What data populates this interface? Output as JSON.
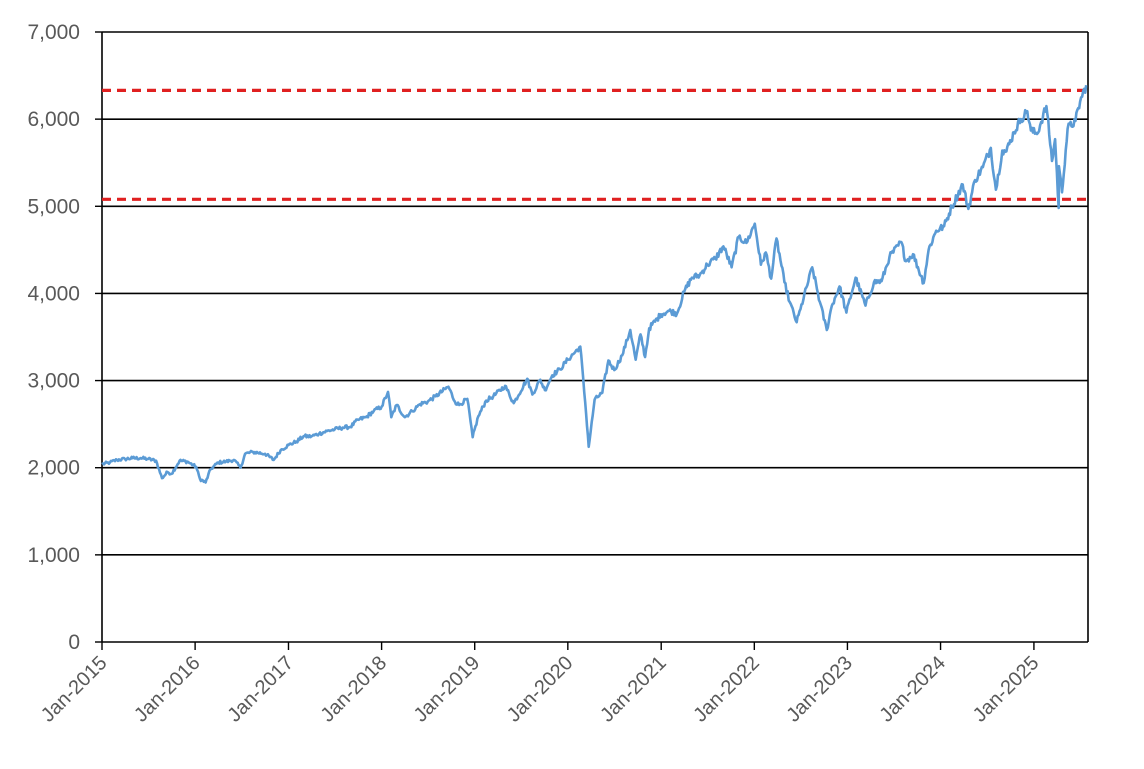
{
  "chart_data": {
    "type": "line",
    "title": "",
    "xlabel": "",
    "ylabel": "",
    "ylim": [
      0,
      7000
    ],
    "xlim": [
      "2015-01-01",
      "2025-08-01"
    ],
    "y_ticks": [
      0,
      1000,
      2000,
      3000,
      4000,
      5000,
      6000,
      7000
    ],
    "y_tick_labels": [
      "0",
      "1,000",
      "2,000",
      "3,000",
      "4,000",
      "5,000",
      "6,000",
      "7,000"
    ],
    "x_ticks": [
      "2015-01-01",
      "2016-01-01",
      "2017-01-01",
      "2018-01-01",
      "2019-01-01",
      "2020-01-01",
      "2021-01-01",
      "2022-01-01",
      "2023-01-01",
      "2024-01-01",
      "2025-01-01"
    ],
    "x_tick_labels": [
      "Jan-2015",
      "Jan-2016",
      "Jan-2017",
      "Jan-2018",
      "Jan-2019",
      "Jan-2020",
      "Jan-2021",
      "Jan-2022",
      "Jan-2023",
      "Jan-2024",
      "Jan-2025"
    ],
    "gridlines": "horizontal",
    "legend": "none",
    "reference_lines": [
      {
        "y": 6330,
        "style": "dashed",
        "color": "#e02020"
      },
      {
        "y": 5080,
        "style": "dashed",
        "color": "#e02020"
      }
    ],
    "series": [
      {
        "color": "#5b9bd5",
        "points": [
          [
            "2015-01-01",
            2040
          ],
          [
            "2015-02-01",
            2060
          ],
          [
            "2015-03-01",
            2090
          ],
          [
            "2015-04-01",
            2100
          ],
          [
            "2015-05-01",
            2110
          ],
          [
            "2015-06-01",
            2110
          ],
          [
            "2015-07-01",
            2100
          ],
          [
            "2015-08-01",
            2080
          ],
          [
            "2015-08-24",
            1880
          ],
          [
            "2015-09-15",
            1950
          ],
          [
            "2015-10-01",
            1930
          ],
          [
            "2015-11-01",
            2080
          ],
          [
            "2015-12-01",
            2070
          ],
          [
            "2016-01-05",
            2010
          ],
          [
            "2016-01-20",
            1870
          ],
          [
            "2016-02-11",
            1830
          ],
          [
            "2016-03-01",
            1980
          ],
          [
            "2016-04-01",
            2060
          ],
          [
            "2016-05-01",
            2070
          ],
          [
            "2016-06-01",
            2090
          ],
          [
            "2016-06-27",
            2000
          ],
          [
            "2016-07-15",
            2160
          ],
          [
            "2016-08-15",
            2180
          ],
          [
            "2016-10-01",
            2160
          ],
          [
            "2016-11-04",
            2090
          ],
          [
            "2016-12-01",
            2200
          ],
          [
            "2017-01-01",
            2260
          ],
          [
            "2017-02-01",
            2300
          ],
          [
            "2017-03-01",
            2360
          ],
          [
            "2017-04-01",
            2360
          ],
          [
            "2017-05-01",
            2390
          ],
          [
            "2017-06-01",
            2420
          ],
          [
            "2017-07-01",
            2440
          ],
          [
            "2017-08-01",
            2460
          ],
          [
            "2017-09-01",
            2470
          ],
          [
            "2017-10-01",
            2550
          ],
          [
            "2017-11-01",
            2580
          ],
          [
            "2017-12-01",
            2650
          ],
          [
            "2018-01-01",
            2700
          ],
          [
            "2018-01-26",
            2870
          ],
          [
            "2018-02-08",
            2580
          ],
          [
            "2018-03-01",
            2720
          ],
          [
            "2018-04-02",
            2580
          ],
          [
            "2018-05-01",
            2650
          ],
          [
            "2018-06-01",
            2730
          ],
          [
            "2018-07-01",
            2760
          ],
          [
            "2018-08-01",
            2820
          ],
          [
            "2018-09-20",
            2930
          ],
          [
            "2018-10-15",
            2760
          ],
          [
            "2018-11-01",
            2720
          ],
          [
            "2018-12-03",
            2790
          ],
          [
            "2018-12-24",
            2350
          ],
          [
            "2019-01-15",
            2590
          ],
          [
            "2019-02-15",
            2770
          ],
          [
            "2019-03-15",
            2820
          ],
          [
            "2019-04-30",
            2940
          ],
          [
            "2019-06-03",
            2740
          ],
          [
            "2019-07-26",
            3020
          ],
          [
            "2019-08-15",
            2840
          ],
          [
            "2019-09-15",
            3010
          ],
          [
            "2019-10-03",
            2890
          ],
          [
            "2019-11-01",
            3060
          ],
          [
            "2019-12-01",
            3130
          ],
          [
            "2020-01-01",
            3240
          ],
          [
            "2020-02-19",
            3390
          ],
          [
            "2020-03-09",
            2750
          ],
          [
            "2020-03-23",
            2240
          ],
          [
            "2020-04-15",
            2780
          ],
          [
            "2020-05-15",
            2860
          ],
          [
            "2020-06-08",
            3230
          ],
          [
            "2020-07-01",
            3120
          ],
          [
            "2020-08-01",
            3290
          ],
          [
            "2020-09-02",
            3580
          ],
          [
            "2020-09-23",
            3240
          ],
          [
            "2020-10-12",
            3530
          ],
          [
            "2020-10-30",
            3270
          ],
          [
            "2020-11-15",
            3600
          ],
          [
            "2020-12-31",
            3760
          ],
          [
            "2021-02-01",
            3800
          ],
          [
            "2021-03-04",
            3770
          ],
          [
            "2021-04-01",
            4020
          ],
          [
            "2021-05-01",
            4180
          ],
          [
            "2021-06-01",
            4210
          ],
          [
            "2021-07-01",
            4330
          ],
          [
            "2021-08-01",
            4400
          ],
          [
            "2021-09-02",
            4540
          ],
          [
            "2021-10-04",
            4300
          ],
          [
            "2021-11-01",
            4650
          ],
          [
            "2021-12-01",
            4580
          ],
          [
            "2022-01-03",
            4800
          ],
          [
            "2022-01-27",
            4330
          ],
          [
            "2022-02-15",
            4470
          ],
          [
            "2022-03-08",
            4170
          ],
          [
            "2022-03-29",
            4630
          ],
          [
            "2022-04-29",
            4130
          ],
          [
            "2022-05-20",
            3900
          ],
          [
            "2022-06-16",
            3670
          ],
          [
            "2022-07-01",
            3820
          ],
          [
            "2022-08-16",
            4300
          ],
          [
            "2022-09-15",
            3900
          ],
          [
            "2022-10-12",
            3580
          ],
          [
            "2022-11-01",
            3860
          ],
          [
            "2022-12-01",
            4080
          ],
          [
            "2022-12-28",
            3780
          ],
          [
            "2023-02-02",
            4180
          ],
          [
            "2023-03-13",
            3860
          ],
          [
            "2023-04-15",
            4130
          ],
          [
            "2023-05-15",
            4140
          ],
          [
            "2023-06-15",
            4420
          ],
          [
            "2023-07-31",
            4590
          ],
          [
            "2023-08-18",
            4370
          ],
          [
            "2023-09-15",
            4450
          ],
          [
            "2023-10-27",
            4120
          ],
          [
            "2023-11-15",
            4500
          ],
          [
            "2023-12-15",
            4720
          ],
          [
            "2024-01-15",
            4770
          ],
          [
            "2024-02-15",
            5000
          ],
          [
            "2024-03-28",
            5250
          ],
          [
            "2024-04-19",
            4970
          ],
          [
            "2024-05-15",
            5300
          ],
          [
            "2024-06-15",
            5450
          ],
          [
            "2024-07-16",
            5670
          ],
          [
            "2024-08-05",
            5190
          ],
          [
            "2024-08-30",
            5640
          ],
          [
            "2024-09-15",
            5630
          ],
          [
            "2024-10-15",
            5850
          ],
          [
            "2024-11-11",
            6000
          ],
          [
            "2024-12-06",
            6090
          ],
          [
            "2024-12-20",
            5870
          ],
          [
            "2025-01-13",
            5830
          ],
          [
            "2025-02-19",
            6150
          ],
          [
            "2025-03-13",
            5520
          ],
          [
            "2025-03-25",
            5770
          ],
          [
            "2025-04-08",
            4980
          ],
          [
            "2025-04-09",
            5460
          ],
          [
            "2025-04-21",
            5160
          ],
          [
            "2025-05-13",
            5890
          ],
          [
            "2025-06-13",
            5980
          ],
          [
            "2025-07-01",
            6200
          ],
          [
            "2025-07-25",
            6390
          ]
        ]
      }
    ]
  }
}
